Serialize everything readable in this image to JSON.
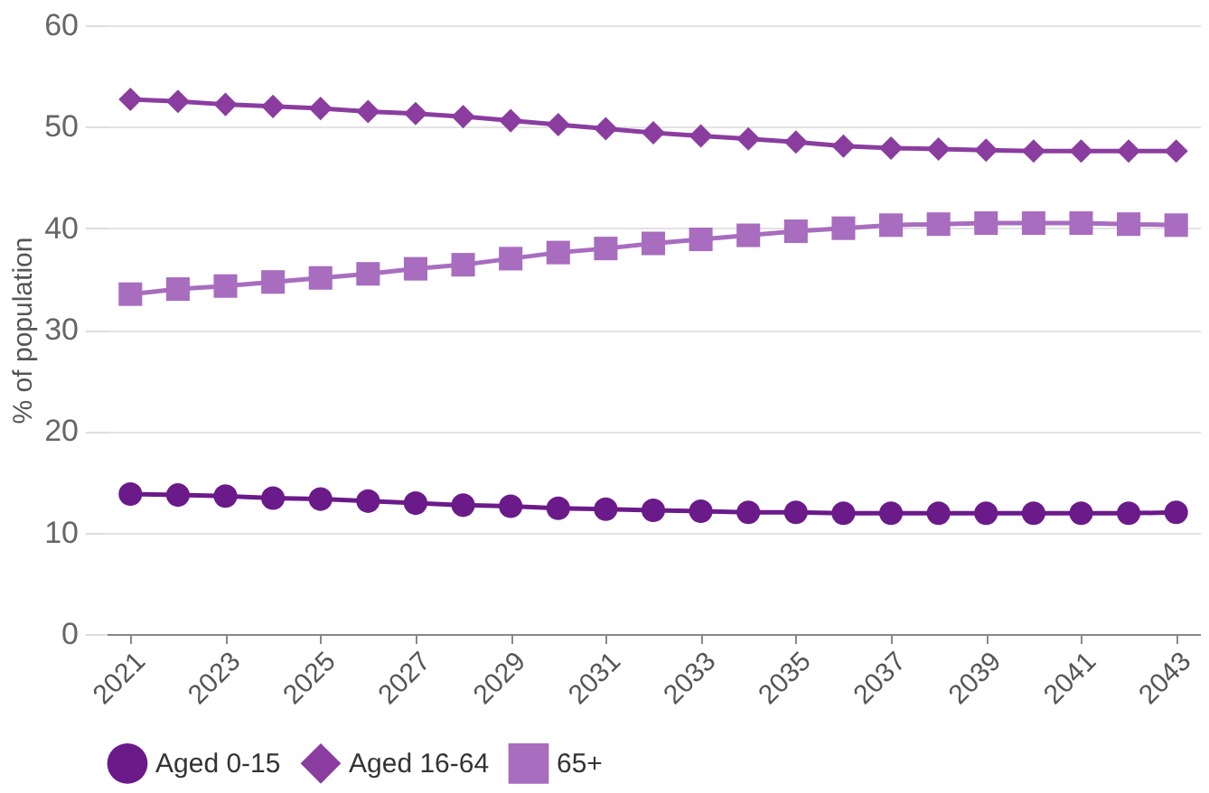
{
  "chart_data": {
    "type": "line",
    "ylabel": "% of population",
    "x": [
      2021,
      2022,
      2023,
      2024,
      2025,
      2026,
      2027,
      2028,
      2029,
      2030,
      2031,
      2032,
      2033,
      2034,
      2035,
      2036,
      2037,
      2038,
      2039,
      2040,
      2041,
      2042,
      2043
    ],
    "xlim": [
      2020.5,
      2043.5
    ],
    "xticks": [
      2021,
      2023,
      2025,
      2027,
      2029,
      2031,
      2033,
      2035,
      2037,
      2039,
      2041,
      2043
    ],
    "ylim": [
      0,
      60
    ],
    "yticks": [
      0,
      10,
      20,
      30,
      40,
      50,
      60
    ],
    "grid": "y",
    "legend": "bottom",
    "line_style": "solid",
    "series": [
      {
        "name": "Aged 0-15",
        "color": "#6b1a8a",
        "marker": "circle",
        "values": [
          13.8,
          13.7,
          13.6,
          13.4,
          13.3,
          13.1,
          12.9,
          12.7,
          12.6,
          12.4,
          12.3,
          12.2,
          12.1,
          12.0,
          12.0,
          11.9,
          11.9,
          11.9,
          11.9,
          11.9,
          11.9,
          11.9,
          12.0
        ]
      },
      {
        "name": "Aged 16-64",
        "color": "#8a3d9f",
        "marker": "diamond",
        "values": [
          52.7,
          52.5,
          52.2,
          52.0,
          51.8,
          51.5,
          51.3,
          51.0,
          50.6,
          50.2,
          49.8,
          49.4,
          49.1,
          48.8,
          48.5,
          48.1,
          47.9,
          47.8,
          47.7,
          47.6,
          47.6,
          47.6,
          47.6
        ]
      },
      {
        "name": "65+",
        "color": "#a86dbf",
        "marker": "square",
        "values": [
          33.5,
          34.0,
          34.3,
          34.7,
          35.1,
          35.5,
          36.0,
          36.4,
          37.0,
          37.6,
          38.0,
          38.5,
          38.9,
          39.3,
          39.7,
          40.0,
          40.3,
          40.4,
          40.5,
          40.5,
          40.5,
          40.4,
          40.3
        ]
      }
    ]
  }
}
